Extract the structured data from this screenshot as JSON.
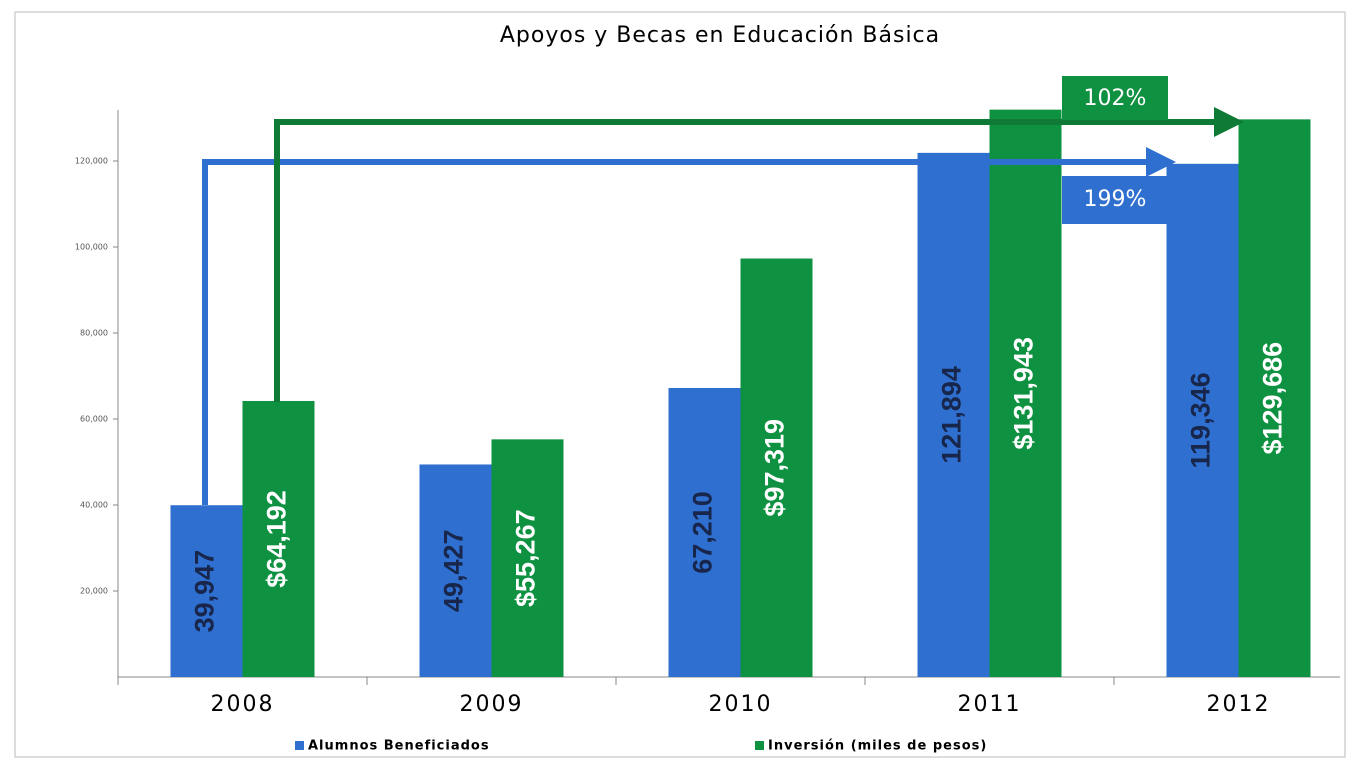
{
  "chart_data": {
    "type": "bar",
    "title": "Apoyos y Becas en Educación Básica",
    "categories": [
      "2008",
      "2009",
      "2010",
      "2011",
      "2012"
    ],
    "series": [
      {
        "name": "Alumnos Beneficiados",
        "color": "#2f6fd0",
        "values": [
          39947,
          49427,
          67210,
          121894,
          119346
        ],
        "value_labels": [
          "39,947",
          "49,427",
          "67,210",
          "121,894",
          "119,346"
        ]
      },
      {
        "name": "Inversión (miles de pesos)",
        "color": "#0e9140",
        "values": [
          64192,
          55267,
          97319,
          131943,
          129686
        ],
        "value_labels": [
          "$64,192",
          "$55,267",
          "$97,319",
          "$131,943",
          "$129,686"
        ]
      }
    ],
    "ylim": [
      0,
      135000
    ],
    "yticks": [
      {
        "value": 20000,
        "label": "20,000"
      },
      {
        "value": 40000,
        "label": "40,000"
      },
      {
        "value": 60000,
        "label": "60,000"
      },
      {
        "value": 80000,
        "label": "80,000"
      },
      {
        "value": 100000,
        "label": "100,000"
      },
      {
        "value": 120000,
        "label": "120,000"
      }
    ],
    "annotations": [
      "102%",
      "199%"
    ],
    "grid": false,
    "legend": "bottom"
  }
}
